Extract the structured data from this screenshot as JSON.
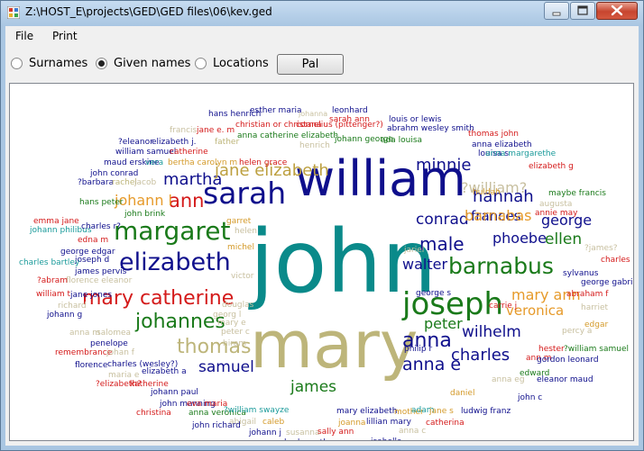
{
  "window": {
    "title": "Z:\\HOST_E\\projects\\GED\\GED files\\06\\kev.ged"
  },
  "menu": [
    "File",
    "Print"
  ],
  "options": {
    "radios": [
      {
        "label": "Surnames",
        "selected": false
      },
      {
        "label": "Given names",
        "selected": true
      },
      {
        "label": "Locations",
        "selected": false
      }
    ],
    "pal_label": "Pal"
  },
  "cloud": {
    "words": [
      {
        "text": "john",
        "color": "#0a8a8a"
      },
      {
        "text": "mary",
        "color": "#bdb57a"
      },
      {
        "text": "william",
        "color": "#0f0f8c"
      },
      {
        "text": "sarah",
        "color": "#0f0f8c"
      },
      {
        "text": "margaret",
        "color": "#1a7a1a"
      },
      {
        "text": "elizabeth",
        "color": "#0f0f8c"
      },
      {
        "text": "mary catherine",
        "color": "#d41a1a"
      },
      {
        "text": "johannes",
        "color": "#1a7a1a"
      },
      {
        "text": "thomas",
        "color": "#bdb57a"
      },
      {
        "text": "joseph",
        "color": "#1a7a1a"
      },
      {
        "text": "barnabus",
        "color": "#1a7a1a"
      },
      {
        "text": "martha",
        "color": "#0f0f8c"
      },
      {
        "text": "ann",
        "color": "#d41a1a"
      },
      {
        "text": "jane elizabeth",
        "color": "#bda040"
      },
      {
        "text": "johann l",
        "color": "#e69a2a"
      },
      {
        "text": "male",
        "color": "#0f0f8c"
      },
      {
        "text": "conrad",
        "color": "#0f0f8c"
      },
      {
        "text": "walter",
        "color": "#0f0f8c"
      },
      {
        "text": "anna",
        "color": "#0f0f8c"
      },
      {
        "text": "anna e",
        "color": "#0f0f8c"
      },
      {
        "text": "charles",
        "color": "#0f0f8c"
      },
      {
        "text": "wilhelm",
        "color": "#0f0f8c"
      },
      {
        "text": "peter",
        "color": "#1a7a1a"
      },
      {
        "text": "samuel",
        "color": "#0f0f8c"
      },
      {
        "text": "james",
        "color": "#1a7a1a"
      },
      {
        "text": "hannah",
        "color": "#0f0f8c"
      },
      {
        "text": "frances",
        "color": "#0f0f8c"
      },
      {
        "text": "barnabas",
        "color": "#e69a2a"
      },
      {
        "text": "george",
        "color": "#0f0f8c"
      },
      {
        "text": "phoebe",
        "color": "#0f0f8c"
      },
      {
        "text": "ellen",
        "color": "#1a7a1a"
      },
      {
        "text": "mary ann",
        "color": "#e69a2a"
      },
      {
        "text": "veronica",
        "color": "#e69a2a"
      },
      {
        "text": "minnie",
        "color": "#0f0f8c"
      },
      {
        "text": "?william?",
        "color": "#c8c0a0"
      },
      {
        "text": "hans henrich",
        "color": "#0f0f8c"
      },
      {
        "text": "esther maria",
        "color": "#0f0f8c"
      },
      {
        "text": "johanna",
        "color": "#c8c0a0"
      },
      {
        "text": "leonhard",
        "color": "#0f0f8c"
      },
      {
        "text": "sarah ann",
        "color": "#d41a1a"
      },
      {
        "text": "louis or lewis",
        "color": "#0f0f8c"
      },
      {
        "text": "christian or christana",
        "color": "#d41a1a"
      },
      {
        "text": "cornelius (pittenger?)",
        "color": "#d41a1a"
      },
      {
        "text": "abrahm wesley smith",
        "color": "#0f0f8c"
      },
      {
        "text": "francis",
        "color": "#c8c0a0"
      },
      {
        "text": "jane e. m",
        "color": "#d41a1a"
      },
      {
        "text": "anna catherine elizabeth",
        "color": "#1a7a1a"
      },
      {
        "text": "thomas john",
        "color": "#d41a1a"
      },
      {
        "text": "johann george",
        "color": "#1a7a1a"
      },
      {
        "text": "ada louisa",
        "color": "#1a7a1a"
      },
      {
        "text": "anna elizabeth",
        "color": "#0f0f8c"
      },
      {
        "text": "?eleanor",
        "color": "#0f0f8c"
      },
      {
        "text": "elizabeth j.",
        "color": "#0f0f8c"
      },
      {
        "text": "father",
        "color": "#bdb57a"
      },
      {
        "text": "henrich",
        "color": "#c8c0a0"
      },
      {
        "text": "louisa s",
        "color": "#0f0f8c"
      },
      {
        "text": "anna margarethe",
        "color": "#1a9a9a"
      },
      {
        "text": "william samuel",
        "color": "#0f0f8c"
      },
      {
        "text": "catherine",
        "color": "#d41a1a"
      },
      {
        "text": "maud erskine",
        "color": "#0f0f8c"
      },
      {
        "text": "vera",
        "color": "#1a9a9a"
      },
      {
        "text": "bertha carolyn m",
        "color": "#d49a2a"
      },
      {
        "text": "helen grace",
        "color": "#d41a1a"
      },
      {
        "text": "elizabeth g",
        "color": "#d41a1a"
      },
      {
        "text": "john conrad",
        "color": "#0f0f8c"
      },
      {
        "text": "?barbara",
        "color": "#0f0f8c"
      },
      {
        "text": "rachel",
        "color": "#bdb57a"
      },
      {
        "text": "jacob",
        "color": "#c8c0a0"
      },
      {
        "text": "huldah",
        "color": "#d49a2a"
      },
      {
        "text": "maybe francis",
        "color": "#1a7a1a"
      },
      {
        "text": "hans peter",
        "color": "#1a7a1a"
      },
      {
        "text": "augusta",
        "color": "#c8c0a0"
      },
      {
        "text": "annie may",
        "color": "#d41a1a"
      },
      {
        "text": "john brink",
        "color": "#1a7a1a"
      },
      {
        "text": "emma jane",
        "color": "#d41a1a"
      },
      {
        "text": "garret",
        "color": "#d49a2a"
      },
      {
        "text": "johann philibus",
        "color": "#1a9a9a"
      },
      {
        "text": "charles r?",
        "color": "#0f0f8c"
      },
      {
        "text": "helen",
        "color": "#c8c0a0"
      },
      {
        "text": "edna m",
        "color": "#d41a1a"
      },
      {
        "text": "george edgar",
        "color": "#0f0f8c"
      },
      {
        "text": "joseph d",
        "color": "#0f0f8c"
      },
      {
        "text": "michel",
        "color": "#d49a2a"
      },
      {
        "text": "?james?",
        "color": "#c8c0a0"
      },
      {
        "text": "jariel",
        "color": "#c8c0a0"
      },
      {
        "text": "charles bartley",
        "color": "#1a9a9a"
      },
      {
        "text": "james pervis",
        "color": "#0f0f8c"
      },
      {
        "text": "florence eleanor",
        "color": "#c8c0a0"
      },
      {
        "text": "charles e",
        "color": "#d41a1a"
      },
      {
        "text": "?abram",
        "color": "#d41a1a"
      },
      {
        "text": "victor",
        "color": "#c8c0a0"
      },
      {
        "text": "sylvanus",
        "color": "#0f0f8c"
      },
      {
        "text": "george gabriel",
        "color": "#0f0f8c"
      },
      {
        "text": "william t",
        "color": "#d41a1a"
      },
      {
        "text": "jane jones",
        "color": "#0f0f8c"
      },
      {
        "text": "abraham f",
        "color": "#d41a1a"
      },
      {
        "text": "george s",
        "color": "#0f0f8c"
      },
      {
        "text": "richard",
        "color": "#c8c0a0"
      },
      {
        "text": "douglas",
        "color": "#c8c0a0"
      },
      {
        "text": "carrie j",
        "color": "#d41a1a"
      },
      {
        "text": "harriet",
        "color": "#c8c0a0"
      },
      {
        "text": "johann g",
        "color": "#0f0f8c"
      },
      {
        "text": "mary e",
        "color": "#c8c0a0"
      },
      {
        "text": "georg l",
        "color": "#c8c0a0"
      },
      {
        "text": "edgar",
        "color": "#d49a2a"
      },
      {
        "text": "anna m",
        "color": "#c8c0a0"
      },
      {
        "text": "salomea",
        "color": "#c8c0a0"
      },
      {
        "text": "peter c",
        "color": "#c8c0a0"
      },
      {
        "text": "percy a",
        "color": "#c8c0a0"
      },
      {
        "text": "penelope",
        "color": "#0f0f8c"
      },
      {
        "text": "hiram",
        "color": "#c8c0a0"
      },
      {
        "text": "remembrance",
        "color": "#d41a1a"
      },
      {
        "text": "johan f",
        "color": "#c8c0a0"
      },
      {
        "text": "philip r",
        "color": "#0f0f8c"
      },
      {
        "text": "hester",
        "color": "#d41a1a"
      },
      {
        "text": "?william samuel",
        "color": "#1a7a1a"
      },
      {
        "text": "ann m",
        "color": "#d41a1a"
      },
      {
        "text": "gordon leonard",
        "color": "#0f0f8c"
      },
      {
        "text": "florence",
        "color": "#0f0f8c"
      },
      {
        "text": "charles (wesley?)",
        "color": "#0f0f8c"
      },
      {
        "text": "elizabeth a",
        "color": "#0f0f8c"
      },
      {
        "text": "edward",
        "color": "#1a7a1a"
      },
      {
        "text": "eleanor maud",
        "color": "#0f0f8c"
      },
      {
        "text": "maria e",
        "color": "#c8c0a0"
      },
      {
        "text": "anna eg",
        "color": "#c8c0a0"
      },
      {
        "text": "?elizabeth?",
        "color": "#d41a1a"
      },
      {
        "text": "katherine",
        "color": "#d41a1a"
      },
      {
        "text": "johann paul",
        "color": "#0f0f8c"
      },
      {
        "text": "daniel",
        "color": "#d49a2a"
      },
      {
        "text": "john manning",
        "color": "#0f0f8c"
      },
      {
        "text": "eva maria",
        "color": "#d41a1a"
      },
      {
        "text": "john c",
        "color": "#0f0f8c"
      },
      {
        "text": "christina",
        "color": "#d41a1a"
      },
      {
        "text": "anna veronica",
        "color": "#1a7a1a"
      },
      {
        "text": "?william swayze",
        "color": "#1a9a9a"
      },
      {
        "text": "mary elizabeth",
        "color": "#0f0f8c"
      },
      {
        "text": "mother",
        "color": "#d49a2a"
      },
      {
        "text": "adam",
        "color": "#1a9a9a"
      },
      {
        "text": "jane s",
        "color": "#d49a2a"
      },
      {
        "text": "ludwig franz",
        "color": "#0f0f8c"
      },
      {
        "text": "abigail",
        "color": "#c8c0a0"
      },
      {
        "text": "caleb",
        "color": "#d49a2a"
      },
      {
        "text": "joanna",
        "color": "#d49a2a"
      },
      {
        "text": "lillian mary",
        "color": "#0f0f8c"
      },
      {
        "text": "catherina",
        "color": "#d41a1a"
      },
      {
        "text": "john richard",
        "color": "#0f0f8c"
      },
      {
        "text": "johann j",
        "color": "#0f0f8c"
      },
      {
        "text": "susanna",
        "color": "#c8c0a0"
      },
      {
        "text": "charles arthur",
        "color": "#0f0f8c"
      },
      {
        "text": "sally ann",
        "color": "#d41a1a"
      },
      {
        "text": "anna c",
        "color": "#c8c0a0"
      },
      {
        "text": "gordon manning",
        "color": "#0f0f8c"
      },
      {
        "text": "isabella",
        "color": "#0f0f8c"
      }
    ]
  }
}
